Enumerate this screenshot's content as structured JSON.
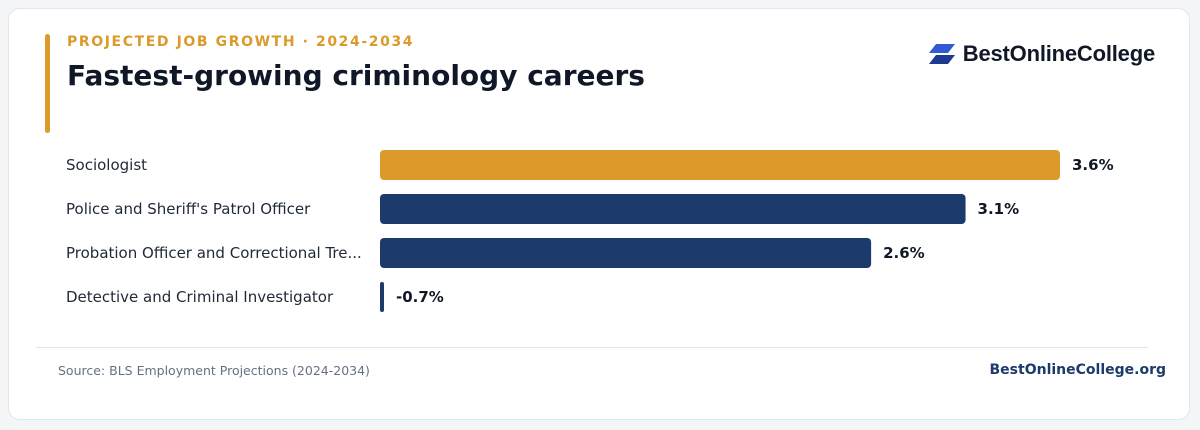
{
  "header": {
    "eyebrow": "PROJECTED JOB GROWTH · 2024-2034",
    "title": "Fastest-growing criminology careers"
  },
  "brand": {
    "name": "BestOnlineCollege",
    "icon": "brand-logo-icon"
  },
  "colors": {
    "accent": "#db9a2a",
    "primary": "#1c3a6b"
  },
  "chart_data": {
    "type": "bar",
    "orientation": "horizontal",
    "categories": [
      "Sociologist",
      "Police and Sheriff's Patrol Officer",
      "Probation Officer and Correctional Tre...",
      "Detective and Criminal Investigator"
    ],
    "values": [
      3.6,
      3.1,
      2.6,
      -0.7
    ],
    "value_labels": [
      "3.6%",
      "3.1%",
      "2.6%",
      "-0.7%"
    ],
    "highlight_index": 0,
    "xlim": [
      0,
      3.6
    ],
    "grid": false,
    "legend": "none"
  },
  "footer": {
    "source": "Source: BLS Employment Projections (2024-2034)",
    "site": "BestOnlineCollege.org"
  }
}
